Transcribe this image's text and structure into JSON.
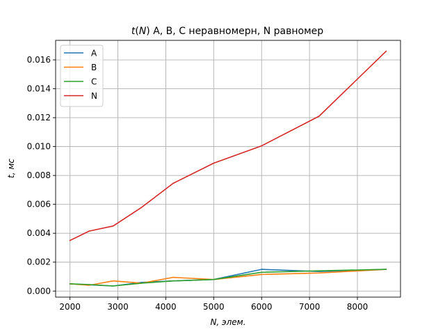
{
  "chart_data": {
    "type": "line",
    "title": "t(N) A, B, C неравномерн, N равномер",
    "title_parts": {
      "var_t": "t",
      "open": "(",
      "var_n": "N",
      "rest": ") A, B, C неравномерн, N равномер"
    },
    "xlabel": "N, элем.",
    "ylabel": "t, мс",
    "xlim": [
      1700,
      8900
    ],
    "ylim": [
      -0.00042,
      0.01735
    ],
    "x_ticks": [
      2000,
      3000,
      4000,
      5000,
      6000,
      7000,
      8000
    ],
    "x_tick_labels": [
      "2000",
      "3000",
      "4000",
      "5000",
      "6000",
      "7000",
      "8000"
    ],
    "y_ticks": [
      0.0,
      0.002,
      0.004,
      0.006,
      0.008,
      0.01,
      0.012,
      0.014,
      0.016
    ],
    "y_tick_labels": [
      "0.000",
      "0.002",
      "0.004",
      "0.006",
      "0.008",
      "0.010",
      "0.012",
      "0.014",
      "0.016"
    ],
    "grid": true,
    "legend_position": "upper-left",
    "series": [
      {
        "name": "A",
        "color": "#1f77b4",
        "x": [
          2000,
          2400,
          2900,
          3500,
          4150,
          5000,
          6000,
          7200,
          8600
        ],
        "y": [
          0.0005,
          0.00043,
          0.00035,
          0.0006,
          0.0007,
          0.0008,
          0.0015,
          0.00135,
          0.0015
        ]
      },
      {
        "name": "B",
        "color": "#ff7f0e",
        "x": [
          2000,
          2400,
          2900,
          3500,
          4150,
          5000,
          6000,
          7200,
          8600
        ],
        "y": [
          0.0005,
          0.0004,
          0.0007,
          0.00055,
          0.00095,
          0.0008,
          0.00115,
          0.00125,
          0.0015
        ]
      },
      {
        "name": "C",
        "color": "#2ca02c",
        "x": [
          2000,
          2400,
          2900,
          3500,
          4150,
          5000,
          6000,
          7200,
          8600
        ],
        "y": [
          0.0005,
          0.00045,
          0.00035,
          0.00055,
          0.0007,
          0.0008,
          0.0013,
          0.0014,
          0.0015
        ]
      },
      {
        "name": "N",
        "color": "#d62728",
        "x": [
          2000,
          2400,
          2900,
          3500,
          4150,
          5000,
          6000,
          7200,
          8600
        ],
        "y": [
          0.0035,
          0.00415,
          0.0045,
          0.0058,
          0.00745,
          0.00885,
          0.01005,
          0.0121,
          0.0166
        ]
      }
    ]
  }
}
